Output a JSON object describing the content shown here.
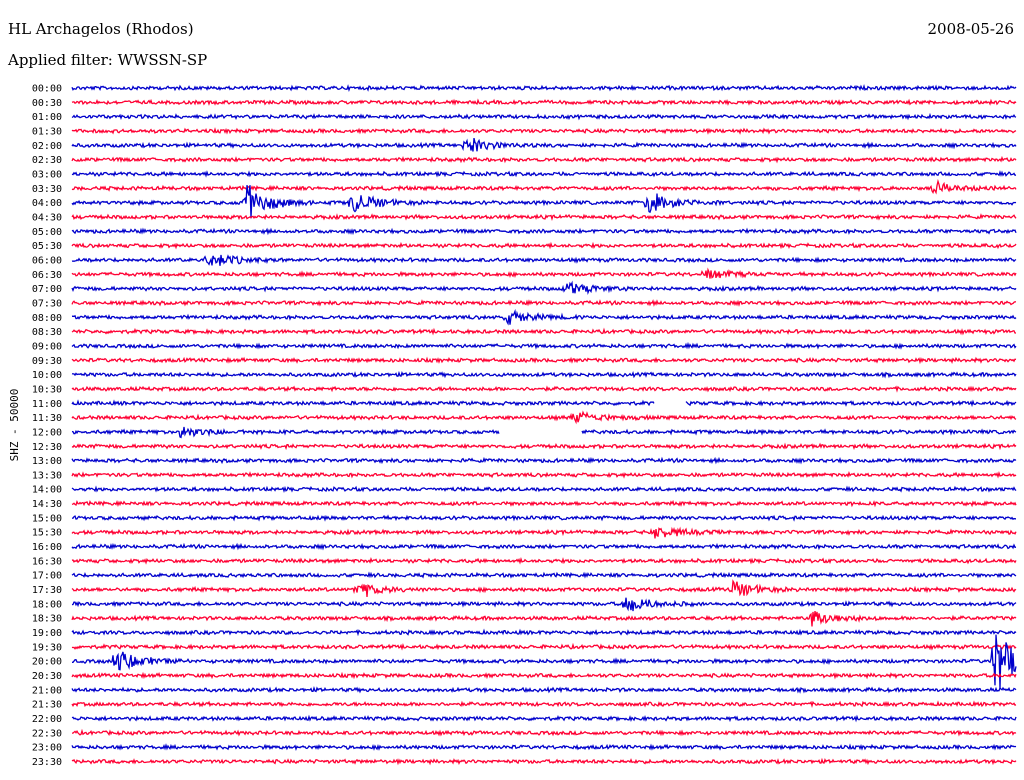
{
  "header": {
    "station": "HL Archagelos (Rhodos)",
    "date": "2008-05-26",
    "filter": "Applied filter: WWSSN-SP"
  },
  "chart_data": {
    "type": "line",
    "title": "HL Archagelos (Rhodos)",
    "subtitle": "Applied filter: WWSSN-SP",
    "ylabel": "SHZ - 50000",
    "colors": {
      "even_rows": "#0000cc",
      "odd_rows": "#ff0033"
    },
    "rows": [
      "00:00",
      "00:30",
      "01:00",
      "01:30",
      "02:00",
      "02:30",
      "03:00",
      "03:30",
      "04:00",
      "04:30",
      "05:00",
      "05:30",
      "06:00",
      "06:30",
      "07:00",
      "07:30",
      "08:00",
      "08:30",
      "09:00",
      "09:30",
      "10:00",
      "10:30",
      "11:00",
      "11:30",
      "12:00",
      "12:30",
      "13:00",
      "13:30",
      "14:00",
      "14:30",
      "15:00",
      "15:30",
      "16:00",
      "16:30",
      "17:00",
      "17:30",
      "18:00",
      "18:30",
      "19:00",
      "19:30",
      "20:00",
      "20:30",
      "21:00",
      "21:30",
      "22:00",
      "22:30",
      "23:00",
      "23:30"
    ],
    "events": [
      {
        "row": "02:00",
        "minute": 12.5,
        "amp": 10
      },
      {
        "row": "03:30",
        "minute": 27.3,
        "amp": 8
      },
      {
        "row": "04:00",
        "minute": 5.5,
        "amp": 24
      },
      {
        "row": "04:00",
        "minute": 8.9,
        "amp": 14
      },
      {
        "row": "04:00",
        "minute": 18.3,
        "amp": 14
      },
      {
        "row": "06:00",
        "minute": 4.3,
        "amp": 10
      },
      {
        "row": "06:30",
        "minute": 20,
        "amp": 7
      },
      {
        "row": "07:00",
        "minute": 15.7,
        "amp": 9
      },
      {
        "row": "08:00",
        "minute": 13.8,
        "amp": 8
      },
      {
        "row": "11:30",
        "minute": 15.9,
        "amp": 8
      },
      {
        "row": "12:00",
        "minute": 3.4,
        "amp": 7
      },
      {
        "row": "15:30",
        "minute": 18.5,
        "amp": 8
      },
      {
        "row": "17:30",
        "minute": 9.0,
        "amp": 10
      },
      {
        "row": "17:30",
        "minute": 21.0,
        "amp": 10
      },
      {
        "row": "18:00",
        "minute": 17.6,
        "amp": 10
      },
      {
        "row": "18:30",
        "minute": 23.5,
        "amp": 10
      },
      {
        "row": "20:00",
        "minute": 1.4,
        "amp": 14
      },
      {
        "row": "20:00",
        "minute": 29.3,
        "amp": 45
      }
    ],
    "gaps": [
      {
        "row": "11:00",
        "from_minute": 18.5,
        "to_minute": 19.5
      },
      {
        "row": "12:00",
        "from_minute": 13.6,
        "to_minute": 16.2
      }
    ]
  }
}
